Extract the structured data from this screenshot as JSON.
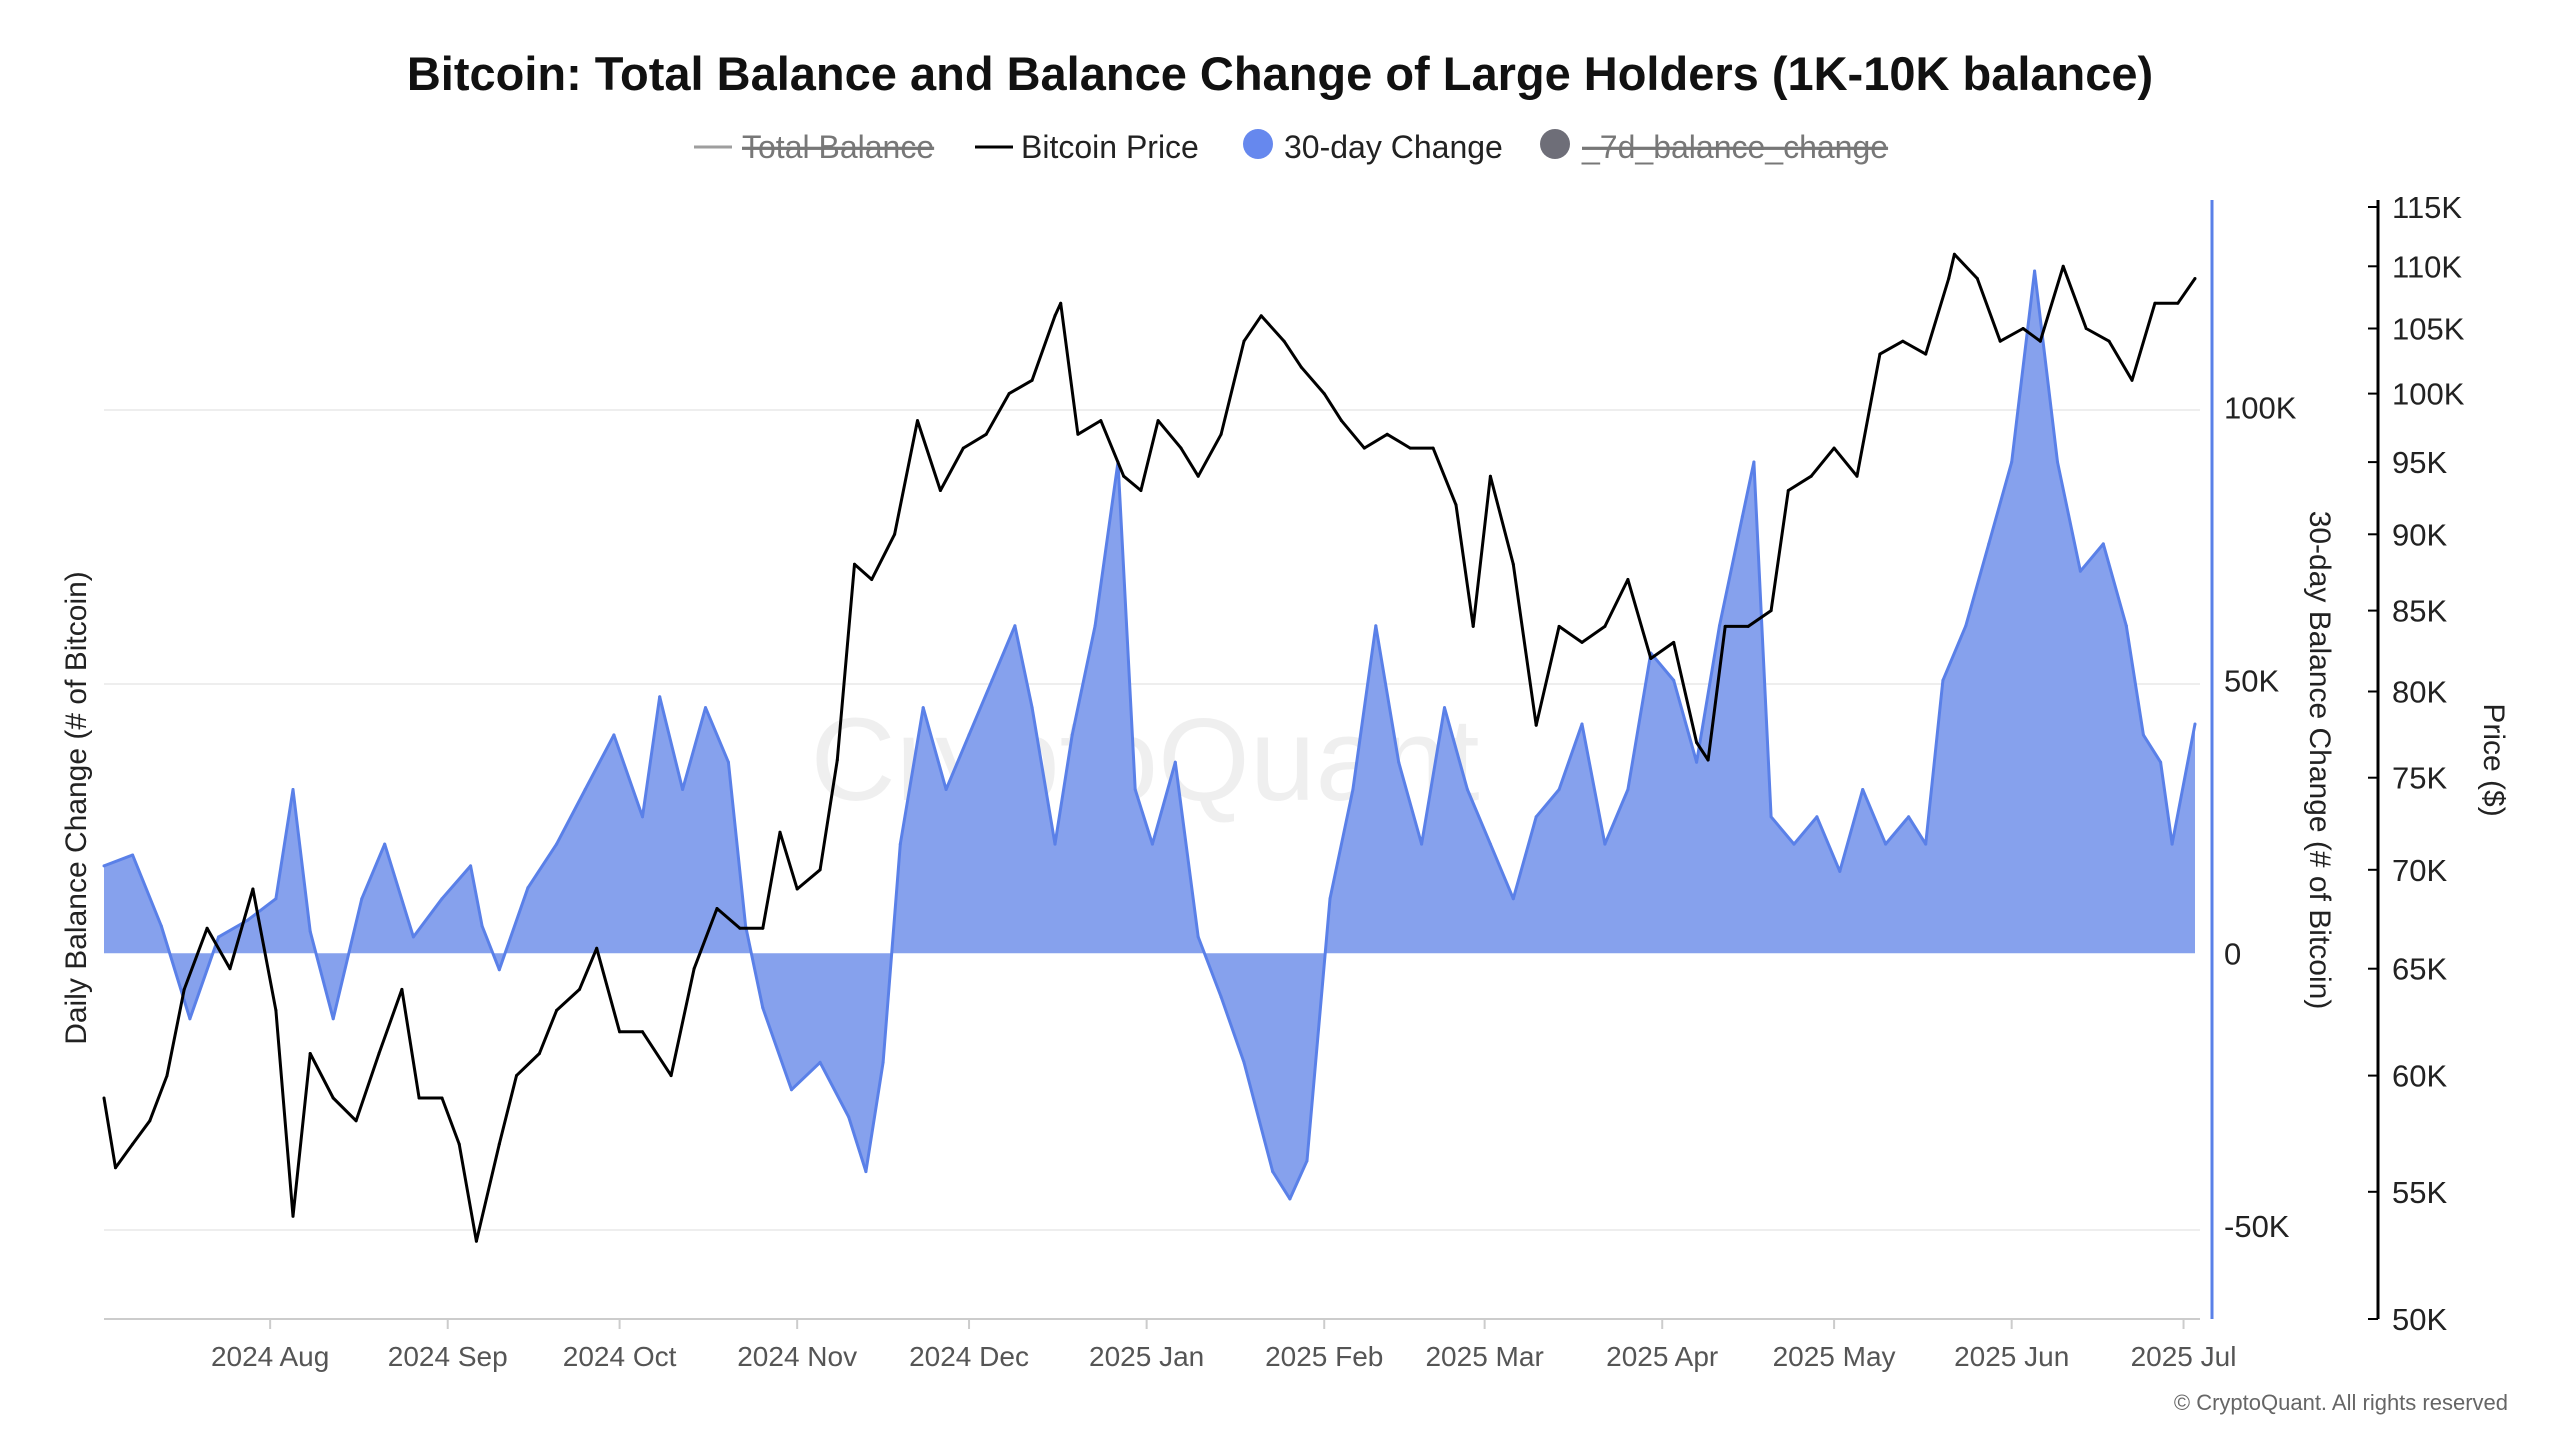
{
  "title": "Bitcoin: Total Balance and Balance Change of Large Holders (1K-10K balance)",
  "legend": [
    {
      "label": "Total Balance",
      "enabled": false,
      "marker": "line",
      "color": "#9e9e9e"
    },
    {
      "label": "Bitcoin Price",
      "enabled": true,
      "marker": "line",
      "color": "#000000"
    },
    {
      "label": "30-day Change",
      "enabled": true,
      "marker": "dot",
      "color": "#6688ee"
    },
    {
      "label": "_7d_balance_change",
      "enabled": false,
      "marker": "dot",
      "color": "#6e6e78"
    }
  ],
  "watermark": "CryptoQuant",
  "copyright": "© CryptoQuant. All rights reserved",
  "colors": {
    "area_fill": "#7f9cec",
    "area_line": "#5a80e8",
    "price_line": "#000000",
    "grid": "#eeeeee"
  },
  "axes": {
    "left_title": "Daily Balance Change (# of Bitcoin)",
    "balance_title": "30-day Balance Change (# of Bitcoin)",
    "price_title": "Price ($)",
    "x_ticks": [
      "2024 Aug",
      "2024 Sep",
      "2024 Oct",
      "2024 Nov",
      "2024 Dec",
      "2025 Jan",
      "2025 Feb",
      "2025 Mar",
      "2025 Apr",
      "2025 May",
      "2025 Jun",
      "2025 Jul"
    ],
    "balance_ticks": [
      "100K",
      "50K",
      "0",
      "-50K"
    ],
    "price_ticks": [
      "115K",
      "110K",
      "105K",
      "100K",
      "95K",
      "90K",
      "85K",
      "80K",
      "75K",
      "70K",
      "65K",
      "60K",
      "55K",
      "50K"
    ]
  },
  "chart_data": {
    "type": "area+line",
    "x_range": [
      "2024-07-03",
      "2025-07-03"
    ],
    "balance_axis": {
      "label": "30-day Balance Change (# of Bitcoin)",
      "min": -67000,
      "max": 138000,
      "ticks": [
        100000,
        50000,
        0,
        -50000
      ]
    },
    "price_axis": {
      "label": "Price ($)",
      "scale": "log",
      "min": 50000,
      "max": 115000,
      "ticks": [
        115000,
        110000,
        105000,
        100000,
        95000,
        90000,
        85000,
        80000,
        75000,
        70000,
        65000,
        60000,
        55000,
        50000
      ]
    },
    "series": [
      {
        "name": "30-day Change",
        "type": "area",
        "points": [
          [
            "2024-07-03",
            16000
          ],
          [
            "2024-07-08",
            18000
          ],
          [
            "2024-07-13",
            5000
          ],
          [
            "2024-07-18",
            -12000
          ],
          [
            "2024-07-23",
            3000
          ],
          [
            "2024-07-28",
            6000
          ],
          [
            "2024-08-02",
            10000
          ],
          [
            "2024-08-05",
            30000
          ],
          [
            "2024-08-08",
            4000
          ],
          [
            "2024-08-12",
            -12000
          ],
          [
            "2024-08-17",
            10000
          ],
          [
            "2024-08-21",
            20000
          ],
          [
            "2024-08-26",
            3000
          ],
          [
            "2024-08-31",
            10000
          ],
          [
            "2024-09-05",
            16000
          ],
          [
            "2024-09-07",
            5000
          ],
          [
            "2024-09-10",
            -3000
          ],
          [
            "2024-09-15",
            12000
          ],
          [
            "2024-09-20",
            20000
          ],
          [
            "2024-09-25",
            30000
          ],
          [
            "2024-09-30",
            40000
          ],
          [
            "2024-10-05",
            25000
          ],
          [
            "2024-10-08",
            47000
          ],
          [
            "2024-10-12",
            30000
          ],
          [
            "2024-10-16",
            45000
          ],
          [
            "2024-10-20",
            35000
          ],
          [
            "2024-10-23",
            5000
          ],
          [
            "2024-10-26",
            -10000
          ],
          [
            "2024-10-31",
            -25000
          ],
          [
            "2024-11-05",
            -20000
          ],
          [
            "2024-11-10",
            -30000
          ],
          [
            "2024-11-13",
            -40000
          ],
          [
            "2024-11-16",
            -20000
          ],
          [
            "2024-11-19",
            20000
          ],
          [
            "2024-11-23",
            45000
          ],
          [
            "2024-11-27",
            30000
          ],
          [
            "2024-12-01",
            40000
          ],
          [
            "2024-12-05",
            50000
          ],
          [
            "2024-12-09",
            60000
          ],
          [
            "2024-12-12",
            45000
          ],
          [
            "2024-12-16",
            20000
          ],
          [
            "2024-12-19",
            40000
          ],
          [
            "2024-12-23",
            60000
          ],
          [
            "2024-12-27",
            90000
          ],
          [
            "2024-12-30",
            30000
          ],
          [
            "2025-01-02",
            20000
          ],
          [
            "2025-01-06",
            35000
          ],
          [
            "2025-01-10",
            3000
          ],
          [
            "2025-01-14",
            -8000
          ],
          [
            "2025-01-18",
            -20000
          ],
          [
            "2025-01-23",
            -40000
          ],
          [
            "2025-01-26",
            -45000
          ],
          [
            "2025-01-29",
            -38000
          ],
          [
            "2025-02-02",
            10000
          ],
          [
            "2025-02-06",
            30000
          ],
          [
            "2025-02-10",
            60000
          ],
          [
            "2025-02-14",
            35000
          ],
          [
            "2025-02-18",
            20000
          ],
          [
            "2025-02-22",
            45000
          ],
          [
            "2025-02-26",
            30000
          ],
          [
            "2025-03-02",
            20000
          ],
          [
            "2025-03-06",
            10000
          ],
          [
            "2025-03-10",
            25000
          ],
          [
            "2025-03-14",
            30000
          ],
          [
            "2025-03-18",
            42000
          ],
          [
            "2025-03-22",
            20000
          ],
          [
            "2025-03-26",
            30000
          ],
          [
            "2025-03-30",
            55000
          ],
          [
            "2025-04-03",
            50000
          ],
          [
            "2025-04-07",
            35000
          ],
          [
            "2025-04-11",
            60000
          ],
          [
            "2025-04-15",
            80000
          ],
          [
            "2025-04-17",
            90000
          ],
          [
            "2025-04-20",
            25000
          ],
          [
            "2025-04-24",
            20000
          ],
          [
            "2025-04-28",
            25000
          ],
          [
            "2025-05-02",
            15000
          ],
          [
            "2025-05-06",
            30000
          ],
          [
            "2025-05-10",
            20000
          ],
          [
            "2025-05-14",
            25000
          ],
          [
            "2025-05-17",
            20000
          ],
          [
            "2025-05-20",
            50000
          ],
          [
            "2025-05-24",
            60000
          ],
          [
            "2025-05-28",
            75000
          ],
          [
            "2025-06-01",
            90000
          ],
          [
            "2025-06-05",
            125000
          ],
          [
            "2025-06-09",
            90000
          ],
          [
            "2025-06-13",
            70000
          ],
          [
            "2025-06-17",
            75000
          ],
          [
            "2025-06-21",
            60000
          ],
          [
            "2025-06-24",
            40000
          ],
          [
            "2025-06-27",
            35000
          ],
          [
            "2025-06-29",
            20000
          ],
          [
            "2025-07-03",
            42000
          ]
        ]
      },
      {
        "name": "Bitcoin Price",
        "type": "line",
        "points": [
          [
            "2024-07-03",
            59000
          ],
          [
            "2024-07-05",
            56000
          ],
          [
            "2024-07-08",
            57000
          ],
          [
            "2024-07-11",
            58000
          ],
          [
            "2024-07-14",
            60000
          ],
          [
            "2024-07-17",
            64000
          ],
          [
            "2024-07-21",
            67000
          ],
          [
            "2024-07-25",
            65000
          ],
          [
            "2024-07-29",
            69000
          ],
          [
            "2024-08-02",
            63000
          ],
          [
            "2024-08-05",
            54000
          ],
          [
            "2024-08-08",
            61000
          ],
          [
            "2024-08-12",
            59000
          ],
          [
            "2024-08-16",
            58000
          ],
          [
            "2024-08-20",
            61000
          ],
          [
            "2024-08-24",
            64000
          ],
          [
            "2024-08-27",
            59000
          ],
          [
            "2024-08-31",
            59000
          ],
          [
            "2024-09-03",
            57000
          ],
          [
            "2024-09-06",
            53000
          ],
          [
            "2024-09-10",
            57000
          ],
          [
            "2024-09-13",
            60000
          ],
          [
            "2024-09-17",
            61000
          ],
          [
            "2024-09-20",
            63000
          ],
          [
            "2024-09-24",
            64000
          ],
          [
            "2024-09-27",
            66000
          ],
          [
            "2024-10-01",
            62000
          ],
          [
            "2024-10-05",
            62000
          ],
          [
            "2024-10-10",
            60000
          ],
          [
            "2024-10-14",
            65000
          ],
          [
            "2024-10-18",
            68000
          ],
          [
            "2024-10-22",
            67000
          ],
          [
            "2024-10-26",
            67000
          ],
          [
            "2024-10-29",
            72000
          ],
          [
            "2024-11-01",
            69000
          ],
          [
            "2024-11-05",
            70000
          ],
          [
            "2024-11-08",
            76000
          ],
          [
            "2024-11-11",
            88000
          ],
          [
            "2024-11-14",
            87000
          ],
          [
            "2024-11-18",
            90000
          ],
          [
            "2024-11-22",
            98000
          ],
          [
            "2024-11-26",
            93000
          ],
          [
            "2024-11-30",
            96000
          ],
          [
            "2024-12-04",
            97000
          ],
          [
            "2024-12-08",
            100000
          ],
          [
            "2024-12-12",
            101000
          ],
          [
            "2024-12-16",
            106000
          ],
          [
            "2024-12-17",
            107000
          ],
          [
            "2024-12-20",
            97000
          ],
          [
            "2024-12-24",
            98000
          ],
          [
            "2024-12-28",
            94000
          ],
          [
            "2024-12-31",
            93000
          ],
          [
            "2025-01-03",
            98000
          ],
          [
            "2025-01-07",
            96000
          ],
          [
            "2025-01-10",
            94000
          ],
          [
            "2025-01-14",
            97000
          ],
          [
            "2025-01-18",
            104000
          ],
          [
            "2025-01-21",
            106000
          ],
          [
            "2025-01-25",
            104000
          ],
          [
            "2025-01-28",
            102000
          ],
          [
            "2025-02-01",
            100000
          ],
          [
            "2025-02-04",
            98000
          ],
          [
            "2025-02-08",
            96000
          ],
          [
            "2025-02-12",
            97000
          ],
          [
            "2025-02-16",
            96000
          ],
          [
            "2025-02-20",
            96000
          ],
          [
            "2025-02-24",
            92000
          ],
          [
            "2025-02-27",
            84000
          ],
          [
            "2025-03-02",
            94000
          ],
          [
            "2025-03-06",
            88000
          ],
          [
            "2025-03-10",
            78000
          ],
          [
            "2025-03-14",
            84000
          ],
          [
            "2025-03-18",
            83000
          ],
          [
            "2025-03-22",
            84000
          ],
          [
            "2025-03-26",
            87000
          ],
          [
            "2025-03-30",
            82000
          ],
          [
            "2025-04-03",
            83000
          ],
          [
            "2025-04-07",
            77000
          ],
          [
            "2025-04-09",
            76000
          ],
          [
            "2025-04-12",
            84000
          ],
          [
            "2025-04-16",
            84000
          ],
          [
            "2025-04-20",
            85000
          ],
          [
            "2025-04-23",
            93000
          ],
          [
            "2025-04-27",
            94000
          ],
          [
            "2025-05-01",
            96000
          ],
          [
            "2025-05-05",
            94000
          ],
          [
            "2025-05-09",
            103000
          ],
          [
            "2025-05-13",
            104000
          ],
          [
            "2025-05-17",
            103000
          ],
          [
            "2025-05-21",
            109000
          ],
          [
            "2025-05-22",
            111000
          ],
          [
            "2025-05-26",
            109000
          ],
          [
            "2025-05-30",
            104000
          ],
          [
            "2025-06-03",
            105000
          ],
          [
            "2025-06-06",
            104000
          ],
          [
            "2025-06-10",
            110000
          ],
          [
            "2025-06-14",
            105000
          ],
          [
            "2025-06-18",
            104000
          ],
          [
            "2025-06-22",
            101000
          ],
          [
            "2025-06-26",
            107000
          ],
          [
            "2025-06-30",
            107000
          ],
          [
            "2025-07-03",
            109000
          ]
        ]
      }
    ]
  }
}
